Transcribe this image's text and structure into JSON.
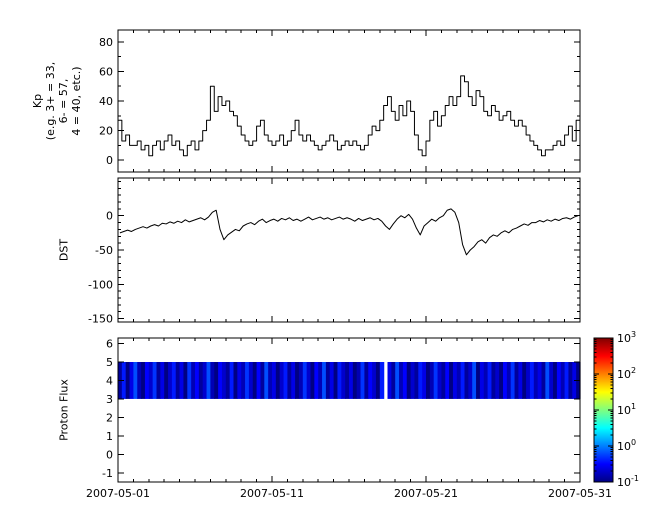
{
  "figure": {
    "bg": "#ffffff",
    "fg": "#000000"
  },
  "x_axis": {
    "tick_labels": [
      "2007-05-01",
      "2007-05-11",
      "2007-05-21",
      "2007-05-31"
    ],
    "tick_days": [
      0,
      10,
      20,
      30
    ],
    "minor_day_step": 1,
    "range_days": [
      0,
      30
    ]
  },
  "chart_data": [
    {
      "type": "line",
      "name": "kp-index",
      "ylabel": "Kp\n(e.g. 3+ = 33,\n6- = 57,\n4 = 40, etc.)",
      "ylim": [
        -8,
        88
      ],
      "yticks": [
        0,
        20,
        40,
        60,
        80
      ],
      "minor_ytick_step": 10,
      "line_color": "#000000",
      "step": true,
      "x_step_days": 0.25,
      "values": [
        27,
        13,
        17,
        10,
        10,
        13,
        7,
        10,
        3,
        10,
        13,
        7,
        13,
        17,
        10,
        13,
        7,
        3,
        10,
        13,
        7,
        13,
        20,
        27,
        50,
        33,
        43,
        37,
        40,
        33,
        30,
        23,
        17,
        13,
        10,
        13,
        23,
        27,
        17,
        13,
        10,
        13,
        17,
        10,
        13,
        20,
        27,
        17,
        13,
        17,
        13,
        10,
        7,
        10,
        13,
        17,
        13,
        7,
        10,
        13,
        10,
        13,
        10,
        7,
        10,
        17,
        23,
        20,
        27,
        37,
        43,
        33,
        27,
        37,
        30,
        40,
        33,
        17,
        7,
        3,
        13,
        27,
        33,
        23,
        30,
        37,
        43,
        37,
        43,
        57,
        53,
        43,
        37,
        47,
        43,
        33,
        30,
        37,
        33,
        27,
        30,
        33,
        27,
        23,
        27,
        23,
        17,
        13,
        10,
        7,
        3,
        7,
        7,
        10,
        13,
        10,
        17,
        23,
        13,
        27
      ]
    },
    {
      "type": "line",
      "name": "dst-index",
      "ylabel": "DST",
      "ylim": [
        -155,
        55
      ],
      "yticks": [
        0,
        -50,
        -100,
        -150
      ],
      "minor_ytick_step": 10,
      "line_color": "#000000",
      "step": false,
      "x_step_days": 0.25,
      "values": [
        -25,
        -23,
        -21,
        -23,
        -20,
        -18,
        -16,
        -18,
        -15,
        -13,
        -15,
        -11,
        -12,
        -9,
        -11,
        -8,
        -10,
        -6,
        -9,
        -7,
        -5,
        -3,
        -6,
        -2,
        5,
        8,
        -20,
        -35,
        -28,
        -24,
        -20,
        -22,
        -15,
        -12,
        -10,
        -13,
        -8,
        -5,
        -10,
        -7,
        -5,
        -8,
        -4,
        -6,
        -3,
        -7,
        -5,
        -8,
        -5,
        -2,
        -6,
        -4,
        -2,
        -5,
        -3,
        -6,
        -4,
        -2,
        -5,
        -3,
        -5,
        -8,
        -4,
        -7,
        -5,
        -3,
        -6,
        -4,
        -8,
        -15,
        -20,
        -12,
        -5,
        0,
        -3,
        2,
        -5,
        -18,
        -28,
        -15,
        -10,
        -5,
        -8,
        -3,
        0,
        8,
        10,
        5,
        -10,
        -42,
        -57,
        -50,
        -45,
        -38,
        -35,
        -40,
        -32,
        -28,
        -30,
        -25,
        -22,
        -25,
        -20,
        -18,
        -15,
        -12,
        -14,
        -10,
        -10,
        -7,
        -9,
        -6,
        -8,
        -5,
        -7,
        -4,
        -3,
        -5,
        -2,
        0
      ]
    },
    {
      "type": "heatmap",
      "name": "proton-flux",
      "ylabel": "Proton Flux",
      "ylim": [
        -1.5,
        6.3
      ],
      "yticks": [
        6,
        5,
        4,
        3,
        2,
        1,
        0,
        -1
      ],
      "band_y": [
        3,
        5
      ],
      "x_step_days": 0.25,
      "gap_days": [
        17.3,
        17.5
      ],
      "log_flux_values": [
        -0.9,
        -0.4,
        -1.0,
        -0.6,
        -0.2,
        -0.8,
        -1.0,
        -0.5,
        -0.7,
        -0.3,
        -0.9,
        -0.6,
        -1.0,
        -0.7,
        -0.4,
        -0.9,
        -0.6,
        -1.0,
        -0.3,
        -0.8,
        -0.5,
        -0.9,
        -0.7,
        -0.2,
        -0.8,
        -1.0,
        -0.5,
        -0.7,
        -0.9,
        -0.4,
        -1.0,
        -0.6,
        -0.8,
        -0.3,
        -0.7,
        -1.0,
        -0.5,
        -0.9,
        -0.2,
        -0.8,
        -0.6,
        -1.0,
        -0.7,
        -0.4,
        -0.9,
        -0.6,
        -1.0,
        -0.8,
        -0.3,
        -0.7,
        -1.0,
        -0.5,
        -0.8,
        -0.2,
        -0.9,
        -0.6,
        -1.0,
        -0.4,
        -0.7,
        -0.9,
        -0.6,
        -1.0,
        -0.8,
        -0.3,
        -0.9,
        -0.5,
        -0.7,
        -1.0,
        -0.4,
        -0.8,
        -0.6,
        -0.9,
        -0.2,
        -0.8,
        -0.5,
        -1.0,
        -0.7,
        -0.9,
        -0.4,
        -0.6,
        -1.0,
        -0.8,
        -0.3,
        -0.7,
        -0.9,
        -0.5,
        -1.0,
        -0.6,
        -0.8,
        -0.4,
        -0.9,
        -0.7,
        -0.2,
        -1.0,
        -0.6,
        -0.8,
        -0.4,
        -0.9,
        -0.7,
        -1.0,
        -0.5,
        -0.8,
        -0.3,
        -0.9,
        -0.6,
        -1.0,
        -0.7,
        -0.4,
        -0.8,
        -0.6,
        -0.9,
        -0.2,
        -0.7,
        -1.0,
        -0.5,
        -0.8,
        -0.4,
        -0.9,
        -0.6,
        -1.0
      ],
      "colorbar": {
        "tick_labels": [
          "10^3",
          "10^2",
          "10^1",
          "10^0",
          "10^-1"
        ],
        "tick_log_values": [
          3,
          2,
          1,
          0,
          -1
        ],
        "scale_log_range": [
          -1,
          3
        ],
        "jet_stops": [
          {
            "pos": 0.0,
            "color": "#000083"
          },
          {
            "pos": 0.125,
            "color": "#0000ff"
          },
          {
            "pos": 0.375,
            "color": "#00ffff"
          },
          {
            "pos": 0.625,
            "color": "#ffff00"
          },
          {
            "pos": 0.875,
            "color": "#ff0000"
          },
          {
            "pos": 1.0,
            "color": "#800000"
          }
        ]
      }
    }
  ]
}
